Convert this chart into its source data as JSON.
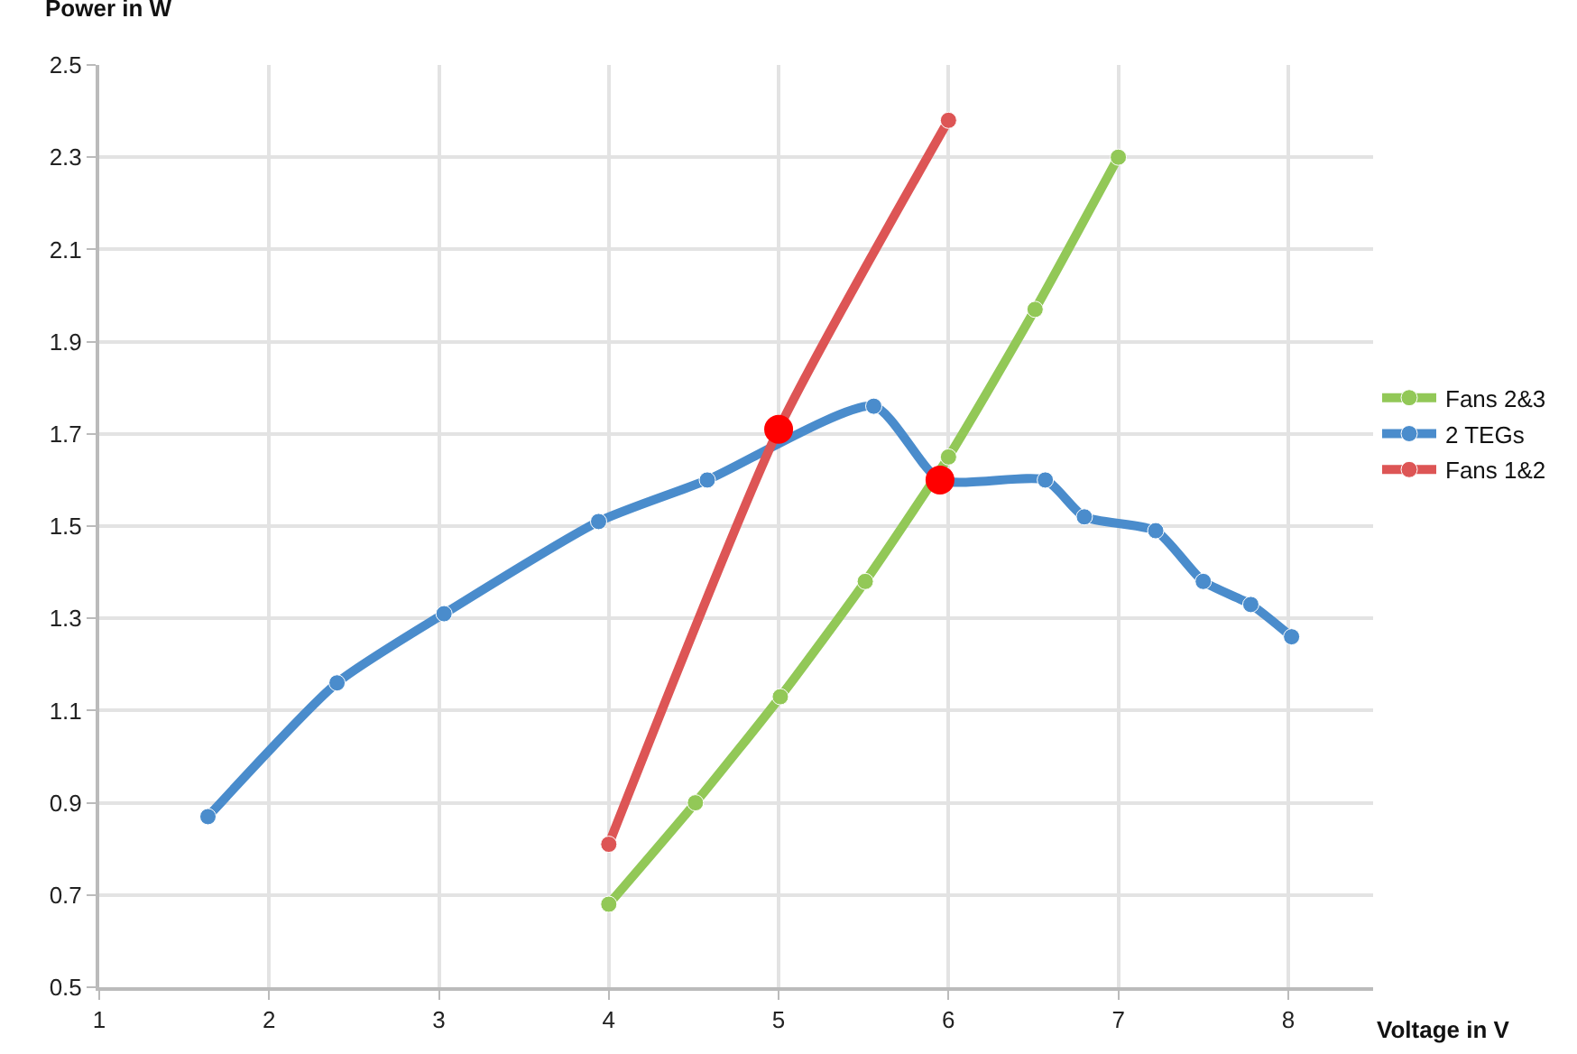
{
  "chart_data": {
    "type": "line",
    "xlabel": "Voltage in V",
    "ylabel": "Power in W",
    "xlim": [
      1,
      8.5
    ],
    "xticks": [
      1,
      2,
      3,
      4,
      5,
      6,
      7,
      8
    ],
    "ylim": [
      0.5,
      2.5
    ],
    "yticks": [
      0.5,
      0.7,
      0.9,
      1.1,
      1.3,
      1.5,
      1.7,
      1.9,
      2.1,
      2.3,
      2.5
    ],
    "grid": true,
    "legend": "right",
    "marker": "circle",
    "line_style": "solid",
    "series": [
      {
        "name": "Fans 2&3",
        "color": "#92c857",
        "x": [
          4.0,
          4.51,
          5.01,
          5.51,
          6.0,
          6.51,
          7.0
        ],
        "values": [
          0.68,
          0.9,
          1.13,
          1.38,
          1.65,
          1.97,
          2.3
        ]
      },
      {
        "name": "2 TEGs",
        "color": "#4a8ccc",
        "x": [
          1.64,
          2.4,
          3.03,
          3.94,
          4.58,
          5.56,
          5.95,
          6.57,
          6.8,
          7.22,
          7.5,
          7.78,
          8.02
        ],
        "values": [
          0.87,
          1.16,
          1.31,
          1.51,
          1.6,
          1.76,
          1.6,
          1.6,
          1.52,
          1.49,
          1.38,
          1.33,
          1.26
        ]
      },
      {
        "name": "Fans 1&2",
        "color": "#dd5555",
        "x": [
          4.0,
          5.0,
          6.0
        ],
        "values": [
          0.81,
          1.71,
          2.38
        ]
      },
      {
        "type": "scatter",
        "color": "#ff0000",
        "x": [
          5.0,
          5.95
        ],
        "values": [
          1.71,
          1.6
        ]
      }
    ]
  }
}
